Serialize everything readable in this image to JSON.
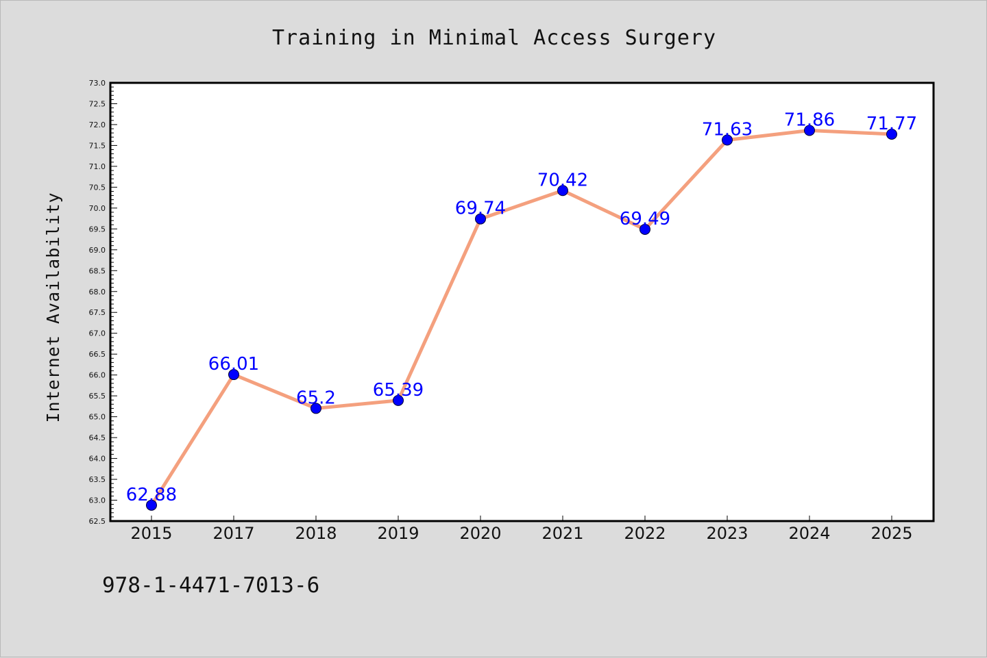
{
  "chart_data": {
    "type": "line",
    "title": "Training in Minimal Access Surgery",
    "xlabel": "",
    "ylabel": "Internet Availability",
    "categories": [
      "2015",
      "2017",
      "2018",
      "2019",
      "2020",
      "2021",
      "2022",
      "2023",
      "2024",
      "2025"
    ],
    "series": [
      {
        "values": [
          62.88,
          66.01,
          65.2,
          65.39,
          69.74,
          70.42,
          69.49,
          71.63,
          71.86,
          71.77
        ],
        "data_labels": [
          "62.88",
          "66.01",
          "65.2",
          "65.39",
          "69.74",
          "70.42",
          "69.49",
          "71.63",
          "71.86",
          "71.77"
        ]
      }
    ],
    "ylim": [
      62.5,
      73.0
    ],
    "yticks": [
      "62.5",
      "63.0",
      "63.5",
      "64.0",
      "64.5",
      "65.0",
      "65.5",
      "66.0",
      "66.5",
      "67.0",
      "67.5",
      "68.0",
      "68.5",
      "69.0",
      "69.5",
      "70.0",
      "70.5",
      "71.0",
      "71.5",
      "72.0",
      "72.5",
      "73.0"
    ],
    "grid": false,
    "legend": "none",
    "colors": {
      "line": "#f4a07e",
      "marker": "#0000ff",
      "data_label": "#0000ff",
      "background": "#dcdcdc",
      "plot_background": "#ffffff"
    }
  },
  "footer": {
    "isbn": "978-1-4471-7013-6"
  }
}
